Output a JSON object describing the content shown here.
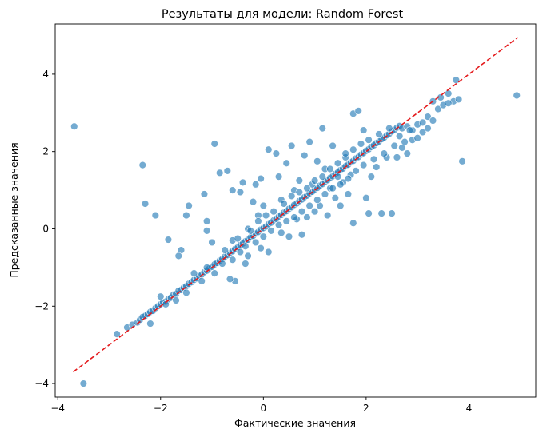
{
  "chart_data": {
    "type": "scatter",
    "title": "Результаты для модели: Random Forest",
    "xlabel": "Фактические значения",
    "ylabel": "Предсказанные значения",
    "xlim": [
      -4.05,
      5.3
    ],
    "ylim": [
      -4.35,
      5.3
    ],
    "xticks": [
      -4,
      -2,
      0,
      2,
      4
    ],
    "yticks": [
      -4,
      -2,
      0,
      2,
      4
    ],
    "xtick_labels": [
      "−4",
      "−2",
      "0",
      "2",
      "4"
    ],
    "ytick_labels": [
      "−4",
      "−2",
      "0",
      "2",
      "4"
    ],
    "grid": false,
    "legend": "none",
    "colors": {
      "points": "#1f77b4",
      "reference_line": "#e41a1c"
    },
    "reference_line": {
      "x": [
        -3.7,
        4.95
      ],
      "y": [
        -3.7,
        4.95
      ],
      "style": "dashed"
    },
    "points": [
      [
        -3.68,
        2.65
      ],
      [
        -3.5,
        -4.0
      ],
      [
        -2.85,
        -2.72
      ],
      [
        -2.65,
        -2.55
      ],
      [
        -2.55,
        -2.48
      ],
      [
        -2.45,
        -2.42
      ],
      [
        -2.4,
        -2.35
      ],
      [
        -2.35,
        -2.28
      ],
      [
        -2.3,
        -2.25
      ],
      [
        -2.25,
        -2.2
      ],
      [
        -2.2,
        -2.15
      ],
      [
        -2.15,
        -2.12
      ],
      [
        -2.1,
        -2.05
      ],
      [
        -2.05,
        -2.0
      ],
      [
        -2.0,
        -1.95
      ],
      [
        -1.95,
        -1.9
      ],
      [
        -1.9,
        -1.88
      ],
      [
        -1.85,
        -1.82
      ],
      [
        -1.8,
        -1.78
      ],
      [
        -1.75,
        -1.7
      ],
      [
        -1.7,
        -1.68
      ],
      [
        -1.65,
        -1.6
      ],
      [
        -1.6,
        -1.58
      ],
      [
        -1.55,
        -1.52
      ],
      [
        -1.5,
        -1.48
      ],
      [
        -1.45,
        -1.42
      ],
      [
        -1.4,
        -1.38
      ],
      [
        -1.35,
        -1.32
      ],
      [
        -1.3,
        -1.28
      ],
      [
        -1.25,
        -1.22
      ],
      [
        -1.2,
        -1.18
      ],
      [
        -1.15,
        -1.12
      ],
      [
        -1.1,
        -1.08
      ],
      [
        -1.05,
        -1.02
      ],
      [
        -1.0,
        -0.98
      ],
      [
        -0.95,
        -0.92
      ],
      [
        -0.9,
        -0.88
      ],
      [
        -0.85,
        -0.82
      ],
      [
        -0.8,
        -0.78
      ],
      [
        -0.75,
        -0.72
      ],
      [
        -0.7,
        -0.68
      ],
      [
        -0.65,
        -0.62
      ],
      [
        -0.6,
        -0.58
      ],
      [
        -0.55,
        -0.52
      ],
      [
        -0.5,
        -0.48
      ],
      [
        -0.45,
        -0.42
      ],
      [
        -0.4,
        -0.38
      ],
      [
        -0.35,
        -0.32
      ],
      [
        -0.3,
        -0.28
      ],
      [
        -0.25,
        -0.22
      ],
      [
        -0.2,
        -0.18
      ],
      [
        -0.15,
        -0.12
      ],
      [
        -0.1,
        -0.08
      ],
      [
        -0.05,
        -0.02
      ],
      [
        0.0,
        0.02
      ],
      [
        0.05,
        0.06
      ],
      [
        0.1,
        0.12
      ],
      [
        0.15,
        0.16
      ],
      [
        0.2,
        0.22
      ],
      [
        0.25,
        0.26
      ],
      [
        0.3,
        0.32
      ],
      [
        0.35,
        0.36
      ],
      [
        0.4,
        0.42
      ],
      [
        0.45,
        0.46
      ],
      [
        0.5,
        0.52
      ],
      [
        0.55,
        0.56
      ],
      [
        0.6,
        0.62
      ],
      [
        0.65,
        0.66
      ],
      [
        0.7,
        0.72
      ],
      [
        0.75,
        0.76
      ],
      [
        0.8,
        0.82
      ],
      [
        0.85,
        0.86
      ],
      [
        0.9,
        0.92
      ],
      [
        0.95,
        0.96
      ],
      [
        1.0,
        1.02
      ],
      [
        1.05,
        1.06
      ],
      [
        1.1,
        1.12
      ],
      [
        1.15,
        1.16
      ],
      [
        1.2,
        1.22
      ],
      [
        1.25,
        1.26
      ],
      [
        1.3,
        1.32
      ],
      [
        1.35,
        1.36
      ],
      [
        1.4,
        1.42
      ],
      [
        1.45,
        1.46
      ],
      [
        1.5,
        1.52
      ],
      [
        1.55,
        1.56
      ],
      [
        1.6,
        1.62
      ],
      [
        1.65,
        1.66
      ],
      [
        1.7,
        1.72
      ],
      [
        1.75,
        1.76
      ],
      [
        1.8,
        1.82
      ],
      [
        1.85,
        1.86
      ],
      [
        1.9,
        1.92
      ],
      [
        1.95,
        1.96
      ],
      [
        2.0,
        2.02
      ],
      [
        2.05,
        2.06
      ],
      [
        2.1,
        2.12
      ],
      [
        2.15,
        2.16
      ],
      [
        2.2,
        2.22
      ],
      [
        2.25,
        2.26
      ],
      [
        2.3,
        2.32
      ],
      [
        2.35,
        2.36
      ],
      [
        2.4,
        2.42
      ],
      [
        2.45,
        2.46
      ],
      [
        2.5,
        2.52
      ],
      [
        2.55,
        2.56
      ],
      [
        2.6,
        2.62
      ],
      [
        2.65,
        2.66
      ],
      [
        2.7,
        2.6
      ],
      [
        2.8,
        2.65
      ],
      [
        2.9,
        2.55
      ],
      [
        3.0,
        2.7
      ],
      [
        3.1,
        2.75
      ],
      [
        3.2,
        2.9
      ],
      [
        3.3,
        3.3
      ],
      [
        3.45,
        3.4
      ],
      [
        3.6,
        3.5
      ],
      [
        3.7,
        3.3
      ],
      [
        3.75,
        3.85
      ],
      [
        3.8,
        3.35
      ],
      [
        3.87,
        1.75
      ],
      [
        4.93,
        3.45
      ],
      [
        -2.35,
        1.65
      ],
      [
        -2.3,
        0.65
      ],
      [
        -2.1,
        0.35
      ],
      [
        -1.85,
        -0.28
      ],
      [
        -1.45,
        0.6
      ],
      [
        -1.5,
        0.35
      ],
      [
        -1.6,
        -0.55
      ],
      [
        -1.65,
        -0.7
      ],
      [
        -1.15,
        0.9
      ],
      [
        -1.1,
        0.2
      ],
      [
        -1.1,
        -0.05
      ],
      [
        -1.0,
        -0.35
      ],
      [
        -0.95,
        2.2
      ],
      [
        -0.85,
        1.45
      ],
      [
        -0.7,
        1.5
      ],
      [
        -0.6,
        1.0
      ],
      [
        -0.6,
        -0.3
      ],
      [
        -0.55,
        -1.35
      ],
      [
        -0.65,
        -1.3
      ],
      [
        -0.45,
        0.95
      ],
      [
        -0.4,
        1.2
      ],
      [
        -0.35,
        -0.9
      ],
      [
        -0.3,
        0.0
      ],
      [
        -0.3,
        -0.7
      ],
      [
        -0.2,
        0.7
      ],
      [
        -0.15,
        1.15
      ],
      [
        -0.1,
        0.35
      ],
      [
        -0.05,
        1.3
      ],
      [
        -0.05,
        -0.5
      ],
      [
        0.0,
        0.6
      ],
      [
        0.1,
        -0.6
      ],
      [
        0.1,
        2.05
      ],
      [
        0.25,
        1.95
      ],
      [
        0.3,
        1.35
      ],
      [
        0.35,
        -0.1
      ],
      [
        0.35,
        0.75
      ],
      [
        0.45,
        1.7
      ],
      [
        0.5,
        -0.2
      ],
      [
        0.55,
        2.15
      ],
      [
        0.6,
        1.0
      ],
      [
        0.65,
        0.25
      ],
      [
        0.7,
        1.25
      ],
      [
        0.75,
        -0.15
      ],
      [
        0.8,
        1.9
      ],
      [
        0.85,
        0.3
      ],
      [
        0.9,
        2.25
      ],
      [
        0.95,
        1.15
      ],
      [
        1.0,
        0.45
      ],
      [
        1.05,
        1.75
      ],
      [
        1.1,
        0.6
      ],
      [
        1.15,
        2.6
      ],
      [
        1.2,
        1.55
      ],
      [
        1.25,
        0.35
      ],
      [
        1.3,
        1.05
      ],
      [
        1.35,
        2.15
      ],
      [
        1.4,
        0.8
      ],
      [
        1.45,
        1.35
      ],
      [
        1.5,
        0.6
      ],
      [
        1.55,
        1.2
      ],
      [
        1.6,
        1.85
      ],
      [
        1.65,
        0.9
      ],
      [
        1.7,
        1.4
      ],
      [
        1.75,
        0.15
      ],
      [
        1.75,
        2.98
      ],
      [
        1.85,
        3.05
      ],
      [
        1.95,
        2.55
      ],
      [
        2.0,
        0.8
      ],
      [
        2.05,
        0.4
      ],
      [
        2.1,
        1.35
      ],
      [
        2.2,
        1.6
      ],
      [
        2.3,
        0.4
      ],
      [
        2.4,
        1.85
      ],
      [
        2.5,
        0.4
      ],
      [
        2.6,
        1.85
      ],
      [
        2.7,
        2.1
      ],
      [
        2.8,
        1.95
      ],
      [
        2.9,
        2.3
      ],
      [
        3.0,
        2.35
      ],
      [
        3.1,
        2.5
      ],
      [
        3.2,
        2.6
      ],
      [
        3.3,
        2.8
      ],
      [
        3.4,
        3.1
      ],
      [
        3.5,
        3.2
      ],
      [
        3.6,
        3.25
      ],
      [
        -2.2,
        -2.45
      ],
      [
        -2.0,
        -1.75
      ],
      [
        -1.9,
        -1.95
      ],
      [
        -1.7,
        -1.85
      ],
      [
        -1.5,
        -1.65
      ],
      [
        -1.35,
        -1.15
      ],
      [
        -1.2,
        -1.35
      ],
      [
        -1.1,
        -1.0
      ],
      [
        -0.95,
        -1.15
      ],
      [
        -0.8,
        -0.9
      ],
      [
        -0.75,
        -0.55
      ],
      [
        -0.6,
        -0.8
      ],
      [
        -0.5,
        -0.25
      ],
      [
        -0.45,
        -0.6
      ],
      [
        -0.35,
        -0.45
      ],
      [
        -0.25,
        -0.05
      ],
      [
        -0.15,
        -0.35
      ],
      [
        -0.1,
        0.2
      ],
      [
        0.0,
        -0.2
      ],
      [
        0.05,
        0.35
      ],
      [
        0.15,
        -0.05
      ],
      [
        0.2,
        0.45
      ],
      [
        0.3,
        0.1
      ],
      [
        0.4,
        0.65
      ],
      [
        0.45,
        0.2
      ],
      [
        0.55,
        0.85
      ],
      [
        0.6,
        0.3
      ],
      [
        0.7,
        0.95
      ],
      [
        0.75,
        0.45
      ],
      [
        0.85,
        1.05
      ],
      [
        0.9,
        0.6
      ],
      [
        1.0,
        1.25
      ],
      [
        1.05,
        0.75
      ],
      [
        1.15,
        1.35
      ],
      [
        1.2,
        0.9
      ],
      [
        1.3,
        1.55
      ],
      [
        1.35,
        1.05
      ],
      [
        1.45,
        1.7
      ],
      [
        1.5,
        1.15
      ],
      [
        1.6,
        1.95
      ],
      [
        1.65,
        1.3
      ],
      [
        1.75,
        2.05
      ],
      [
        1.8,
        1.5
      ],
      [
        1.9,
        2.2
      ],
      [
        1.95,
        1.65
      ],
      [
        2.05,
        2.3
      ],
      [
        2.15,
        1.8
      ],
      [
        2.25,
        2.45
      ],
      [
        2.35,
        1.95
      ],
      [
        2.45,
        2.6
      ],
      [
        2.55,
        2.15
      ],
      [
        2.65,
        2.4
      ],
      [
        2.75,
        2.25
      ],
      [
        2.85,
        2.55
      ]
    ]
  }
}
